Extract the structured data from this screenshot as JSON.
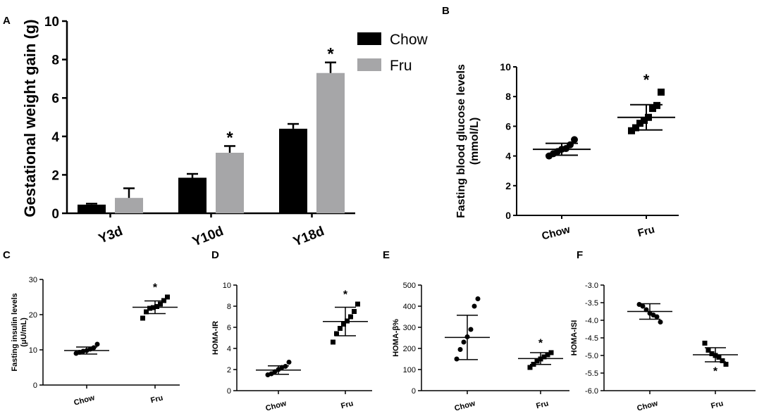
{
  "chart_data": [
    {
      "panel": "A",
      "type": "bar",
      "ylabel": "Gestational weight gain (g)",
      "ylim": [
        0,
        10
      ],
      "yticks": [
        "0",
        "2",
        "4",
        "6",
        "8",
        "10"
      ],
      "categories": [
        "Y3d",
        "Y10d",
        "Y18d"
      ],
      "series": [
        {
          "name": "Chow",
          "color": "#000000",
          "values": [
            0.45,
            1.85,
            4.4
          ],
          "errors": [
            0.05,
            0.2,
            0.25
          ],
          "marks": [
            "",
            "",
            ""
          ]
        },
        {
          "name": "Fru",
          "color": "#a6a6a8",
          "values": [
            0.8,
            3.15,
            7.3
          ],
          "errors": [
            0.5,
            0.35,
            0.55
          ],
          "marks": [
            "",
            "*",
            "*"
          ]
        }
      ]
    },
    {
      "panel": "B",
      "type": "scatter",
      "ylabel": "Fasting blood glucose levels",
      "ylabel2": "(mmol/L)",
      "ylim": [
        0,
        10
      ],
      "yticks": [
        "0",
        "2",
        "4",
        "6",
        "8",
        "10"
      ],
      "categories": [
        "Chow",
        "Fru"
      ],
      "groups": [
        {
          "name": "Chow",
          "marker": "circle",
          "points": [
            4.0,
            4.15,
            4.3,
            4.45,
            4.5,
            4.75,
            5.1
          ],
          "mean": 4.45,
          "sd": 0.4,
          "mark": ""
        },
        {
          "name": "Fru",
          "marker": "square",
          "points": [
            5.7,
            5.9,
            6.2,
            6.4,
            6.6,
            7.2,
            7.4,
            8.3
          ],
          "mean": 6.6,
          "sd": 0.85,
          "mark": "*"
        }
      ]
    },
    {
      "panel": "C",
      "type": "scatter",
      "ylabel": "Fasting insulin levels",
      "ylabel2": "(μU/mL)",
      "ylim": [
        0,
        30
      ],
      "yticks": [
        "0",
        "10",
        "20",
        "30"
      ],
      "categories": [
        "Chow",
        "Fru"
      ],
      "groups": [
        {
          "name": "Chow",
          "marker": "circle",
          "points": [
            9.0,
            9.3,
            9.6,
            9.8,
            10.2,
            10.6,
            11.6
          ],
          "mean": 9.8,
          "sd": 1.0,
          "mark": ""
        },
        {
          "name": "Fru",
          "marker": "square",
          "points": [
            19.0,
            20.8,
            21.8,
            22.0,
            22.3,
            23.0,
            24.0,
            25.0
          ],
          "mean": 22.1,
          "sd": 1.8,
          "mark": "*"
        }
      ]
    },
    {
      "panel": "D",
      "type": "scatter",
      "ylabel": "HOMA-IR",
      "ylim": [
        0,
        10
      ],
      "yticks": [
        "0",
        "2",
        "4",
        "6",
        "8",
        "10"
      ],
      "categories": [
        "Chow",
        "Fru"
      ],
      "groups": [
        {
          "name": "Chow",
          "marker": "circle",
          "points": [
            1.5,
            1.6,
            1.8,
            2.0,
            2.2,
            2.3,
            2.7
          ],
          "mean": 1.95,
          "sd": 0.4,
          "mark": ""
        },
        {
          "name": "Fru",
          "marker": "square",
          "points": [
            4.6,
            5.4,
            5.9,
            6.3,
            6.6,
            7.0,
            7.5,
            8.2
          ],
          "mean": 6.55,
          "sd": 1.35,
          "mark": "*"
        }
      ]
    },
    {
      "panel": "E",
      "type": "scatter",
      "ylabel": "HOMA-β%",
      "ylim": [
        0,
        500
      ],
      "yticks": [
        "0",
        "100",
        "200",
        "300",
        "400",
        "500"
      ],
      "categories": [
        "Chow",
        "Fru"
      ],
      "groups": [
        {
          "name": "Chow",
          "marker": "circle",
          "points": [
            150,
            195,
            230,
            255,
            290,
            400,
            435
          ],
          "mean": 252,
          "sd": 105,
          "mark": ""
        },
        {
          "name": "Fru",
          "marker": "square",
          "points": [
            110,
            125,
            140,
            150,
            160,
            170,
            180
          ],
          "mean": 152,
          "sd": 28,
          "mark": "*"
        }
      ]
    },
    {
      "panel": "F",
      "type": "scatter",
      "ylabel": "HOMA-ISI",
      "ylim": [
        -6.0,
        -3.0
      ],
      "yticks": [
        "-3.0",
        "-3.5",
        "-4.0",
        "-4.5",
        "-5.0",
        "-5.5",
        "-6.0"
      ],
      "categories": [
        "Chow",
        "Fru"
      ],
      "groups": [
        {
          "name": "Chow",
          "marker": "circle",
          "points": [
            -3.55,
            -3.6,
            -3.7,
            -3.8,
            -3.85,
            -3.9,
            -4.05
          ],
          "mean": -3.75,
          "sd": 0.22,
          "mark": ""
        },
        {
          "name": "Fru",
          "marker": "square",
          "points": [
            -4.65,
            -4.85,
            -4.95,
            -5.0,
            -5.05,
            -5.15,
            -5.25
          ],
          "mean": -4.98,
          "sd": 0.2,
          "mark": "*"
        }
      ]
    }
  ]
}
